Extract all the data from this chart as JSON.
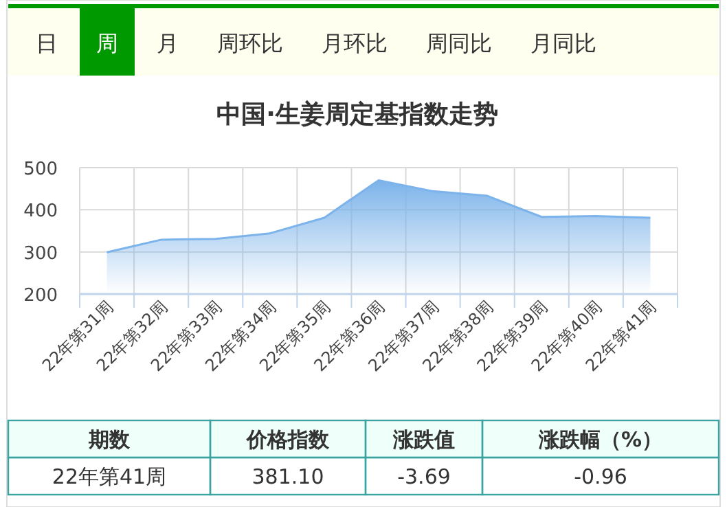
{
  "chart_data": [
    {
      "type": "other",
      "annotations": [
        "日",
        "周",
        "月",
        "周环比",
        "月环比",
        "周同比",
        "月同比"
      ],
      "colors": [
        "#fffff0",
        "#009900",
        "#fffff0",
        "#fffff0",
        "#fffff0",
        "#fffff0",
        "#fffff0"
      ]
    },
    {
      "type": "area",
      "title": "中国·生姜周定基指数走势",
      "categories": [
        "22年第31周",
        "22年第32周",
        "22年第33周",
        "22年第34周",
        "22年第35周",
        "22年第36周",
        "22年第37周",
        "22年第38周",
        "22年第39周",
        "22年第40周",
        "22年第41周"
      ],
      "values": [
        299,
        329,
        331,
        344,
        381,
        470,
        444,
        433,
        383,
        385,
        381
      ],
      "color": "#7cb3ea",
      "ylim": [
        200,
        500
      ],
      "yticks": [
        200,
        300,
        400,
        500
      ],
      "grid": true
    },
    {
      "type": "other",
      "annotations": [
        "期数",
        "价格指数",
        "涨跌值",
        "涨跌幅（%）",
        "22年第41周",
        "381.10",
        "-3.69",
        "-0.96"
      ]
    }
  ]
}
